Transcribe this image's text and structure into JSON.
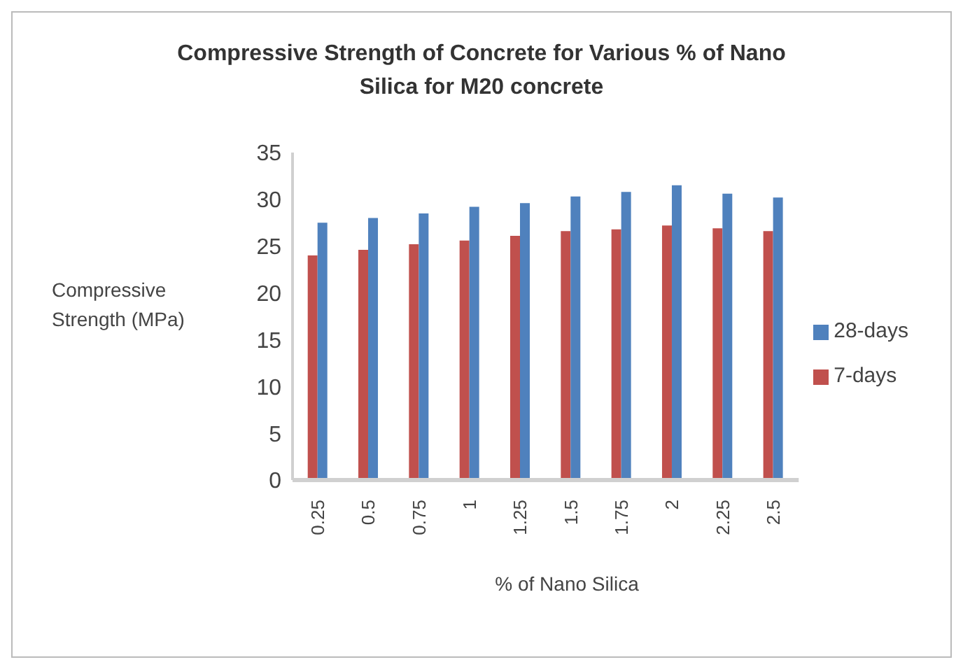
{
  "chart_data": {
    "type": "bar",
    "title": "Compressive Strength of Concrete for Various % of Nano Silica for M20 concrete",
    "xlabel": "% of Nano Silica",
    "ylabel": "Compressive Strength (MPa)",
    "categories": [
      "0.25",
      "0.5",
      "0.75",
      "1",
      "1.25",
      "1.5",
      "1.75",
      "2",
      "2.25",
      "2.5"
    ],
    "series": [
      {
        "name": "7-days",
        "color": "#c0504d",
        "values": [
          24.0,
          24.6,
          25.2,
          25.6,
          26.1,
          26.6,
          26.8,
          27.2,
          26.9,
          26.6
        ]
      },
      {
        "name": "28-days",
        "color": "#4f81bd",
        "values": [
          27.5,
          28.0,
          28.5,
          29.2,
          29.6,
          30.3,
          30.8,
          31.5,
          30.6,
          30.2
        ]
      }
    ],
    "ylim": [
      0,
      35
    ],
    "yticks": [
      0,
      5,
      10,
      15,
      20,
      25,
      30,
      35
    ],
    "grid": false,
    "legend": "right"
  }
}
